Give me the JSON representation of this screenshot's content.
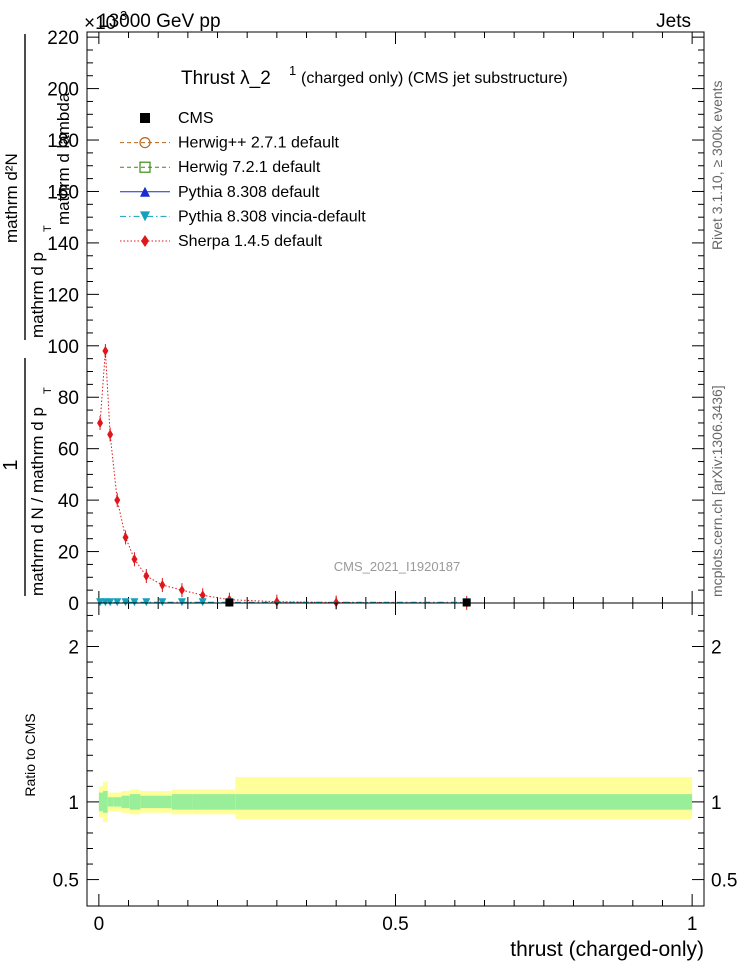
{
  "header": {
    "left": "13000 GeV pp",
    "right": "Jets",
    "exponent": "×10",
    "exponent_sup": "3"
  },
  "side_labels": {
    "rivet": "Rivet 3.1.10, ≥ 300k events",
    "mcplots": "mcplots.cern.ch [arXiv:1306.3436]"
  },
  "plot_title": {
    "main": "Thrust λ_2",
    "sup": "1",
    "suffix": "(charged only) (CMS jet substructure)"
  },
  "analysis_id": "CMS_2021_I1920187",
  "ylabel_top": {
    "num": "1",
    "den": "mathrm d N / mathrm d p",
    "num2": "mathrm d²N",
    "den2": "mathrm d p",
    "den2b": "mathrm d lambda",
    "sub": "T"
  },
  "legend": [
    {
      "label": "CMS",
      "color": "#000000",
      "marker": "square-filled",
      "line": "none"
    },
    {
      "label": "Herwig++ 2.7.1 default",
      "color": "#b8651b",
      "marker": "circle-open",
      "line": "dashed"
    },
    {
      "label": "Herwig 7.2.1 default",
      "color": "#3a8a12",
      "marker": "square-open",
      "line": "dashed"
    },
    {
      "label": "Pythia 8.308 default",
      "color": "#1a2bd0",
      "marker": "triangle-up",
      "line": "solid"
    },
    {
      "label": "Pythia 8.308 vincia-default",
      "color": "#11a1bd",
      "marker": "triangle-down",
      "line": "dashdot"
    },
    {
      "label": "Sherpa 1.4.5 default",
      "color": "#e0161b",
      "marker": "diamond",
      "line": "dotted"
    }
  ],
  "ratio_label": "Ratio to CMS",
  "xlabel": "thrust (charged-only)",
  "chart_data": [
    {
      "type": "line",
      "panel": "main",
      "xlim": [
        -0.02,
        1.02
      ],
      "ylim": [
        0,
        222
      ],
      "y_scale_note": "×10^3",
      "xticks": [],
      "yticks": [
        0,
        20,
        40,
        60,
        80,
        100,
        120,
        140,
        160,
        180,
        200,
        220
      ],
      "ytick_labels": [
        "0",
        "20",
        "40",
        "60",
        "80",
        "100",
        "120",
        "140",
        "160",
        "180",
        "200",
        "220"
      ],
      "series": [
        {
          "name": "Sherpa 1.4.5 default",
          "x": [
            0.002,
            0.011,
            0.019,
            0.031,
            0.045,
            0.06,
            0.08,
            0.107,
            0.14,
            0.175,
            0.22,
            0.3,
            0.4,
            0.62
          ],
          "y": [
            70,
            98,
            65.5,
            40,
            25.5,
            17,
            10.5,
            7,
            5,
            3,
            1.3,
            0.5,
            0.2,
            0.05
          ]
        },
        {
          "name": "Pythia 8.308 vincia-default",
          "x": [
            0.002,
            0.011,
            0.019,
            0.031,
            0.045,
            0.06,
            0.08,
            0.107,
            0.14,
            0.175,
            0.22,
            0.62
          ],
          "y": [
            0.3,
            0.3,
            0.3,
            0.3,
            0.3,
            0.3,
            0.3,
            0.3,
            0.3,
            0.3,
            0.3,
            0.3
          ]
        },
        {
          "name": "CMS",
          "x": [
            0.22,
            0.62
          ],
          "y": [
            0.2,
            0.2
          ]
        }
      ]
    },
    {
      "type": "area",
      "panel": "ratio",
      "xlim": [
        -0.02,
        1.02
      ],
      "ylim": [
        0.33,
        2.28
      ],
      "xticks": [
        0,
        0.5,
        1
      ],
      "xtick_labels": [
        "0",
        "0.5",
        "1"
      ],
      "yticks": [
        0.5,
        1,
        2
      ],
      "ytick_labels": [
        "0.5",
        "1",
        "2"
      ],
      "bands": {
        "edges": [
          0.0,
          0.007,
          0.015,
          0.025,
          0.038,
          0.052,
          0.07,
          0.093,
          0.123,
          0.158,
          0.23,
          1.0
        ],
        "stat_up": [
          1.06,
          1.07,
          1.03,
          1.03,
          1.04,
          1.05,
          1.04,
          1.04,
          1.05,
          1.05,
          1.05
        ],
        "stat_lo": [
          0.94,
          0.93,
          0.97,
          0.97,
          0.96,
          0.95,
          0.96,
          0.96,
          0.95,
          0.95,
          0.95
        ],
        "total_up": [
          1.1,
          1.13,
          1.06,
          1.06,
          1.07,
          1.08,
          1.07,
          1.07,
          1.08,
          1.08,
          1.16
        ],
        "total_lo": [
          0.9,
          0.87,
          0.94,
          0.94,
          0.93,
          0.92,
          0.93,
          0.93,
          0.92,
          0.92,
          0.89
        ]
      },
      "colors": {
        "total": "#ffff99",
        "stat": "#99ee99"
      }
    }
  ]
}
